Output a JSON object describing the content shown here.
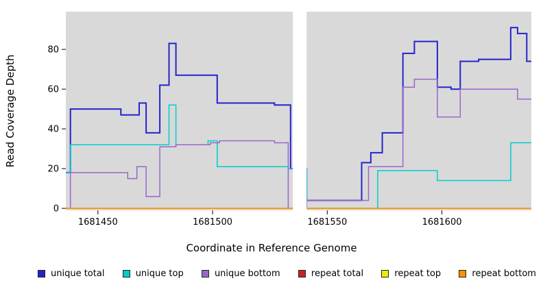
{
  "chart_data": {
    "type": "line",
    "step": true,
    "title": "",
    "xlabel": "Coordinate in Reference Genome",
    "ylabel": "Read Coverage Depth",
    "xlim": [
      1681436,
      1681639
    ],
    "ylim": [
      -1,
      99
    ],
    "x_ticks": [
      1681450,
      1681500,
      1681550,
      1681600
    ],
    "y_ticks": [
      0,
      20,
      40,
      60,
      80
    ],
    "grid": false,
    "legend_position": "bottom",
    "plot_background": "#d9d9d9",
    "gap": {
      "from": 1681535,
      "to": 1681541,
      "color": "#ffffff"
    },
    "series": [
      {
        "name": "unique total",
        "color": "#2323cc",
        "width": 2,
        "steps": [
          [
            1681436,
            18
          ],
          [
            1681438,
            50
          ],
          [
            1681460,
            47
          ],
          [
            1681468,
            53
          ],
          [
            1681471,
            38
          ],
          [
            1681477,
            62
          ],
          [
            1681481,
            83
          ],
          [
            1681484,
            67
          ],
          [
            1681502,
            53
          ],
          [
            1681527,
            52
          ],
          [
            1681534,
            20
          ],
          [
            1681541,
            4
          ],
          [
            1681565,
            23
          ],
          [
            1681569,
            28
          ],
          [
            1681574,
            38
          ],
          [
            1681583,
            78
          ],
          [
            1681588,
            84
          ],
          [
            1681598,
            61
          ],
          [
            1681604,
            60
          ],
          [
            1681608,
            74
          ],
          [
            1681616,
            75
          ],
          [
            1681630,
            91
          ],
          [
            1681633,
            88
          ],
          [
            1681637,
            74
          ]
        ]
      },
      {
        "name": "unique top",
        "color": "#00cdcd",
        "width": 1.5,
        "steps": [
          [
            1681436,
            18
          ],
          [
            1681438,
            32
          ],
          [
            1681481,
            52
          ],
          [
            1681484,
            32
          ],
          [
            1681498,
            34
          ],
          [
            1681502,
            21
          ],
          [
            1681533,
            20
          ],
          [
            1681541,
            0
          ],
          [
            1681572,
            19
          ],
          [
            1681598,
            14
          ],
          [
            1681630,
            33
          ]
        ]
      },
      {
        "name": "unique bottom",
        "color": "#9966cc",
        "width": 1.5,
        "steps": [
          [
            1681436,
            0
          ],
          [
            1681438,
            18
          ],
          [
            1681463,
            15
          ],
          [
            1681467,
            21
          ],
          [
            1681471,
            6
          ],
          [
            1681477,
            31
          ],
          [
            1681484,
            32
          ],
          [
            1681499,
            33
          ],
          [
            1681503,
            34
          ],
          [
            1681527,
            33
          ],
          [
            1681533,
            0
          ],
          [
            1681541,
            4
          ],
          [
            1681568,
            21
          ],
          [
            1681583,
            61
          ],
          [
            1681588,
            65
          ],
          [
            1681598,
            46
          ],
          [
            1681608,
            60
          ],
          [
            1681633,
            55
          ]
        ]
      },
      {
        "name": "repeat total",
        "color": "#cc2222",
        "width": 1.5,
        "steps": [
          [
            1681436,
            0
          ]
        ]
      },
      {
        "name": "repeat top",
        "color": "#eded00",
        "width": 1.5,
        "steps": [
          [
            1681436,
            0
          ]
        ]
      },
      {
        "name": "repeat bottom",
        "color": "#ff9100",
        "width": 1.5,
        "steps": [
          [
            1681436,
            0
          ]
        ]
      }
    ]
  }
}
